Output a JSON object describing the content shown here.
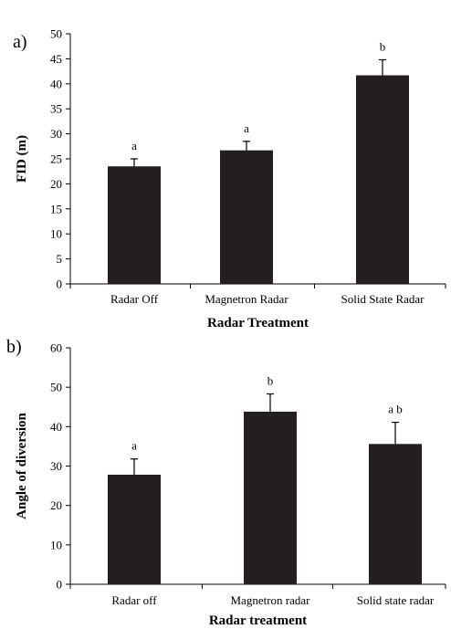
{
  "chart_data": [
    {
      "panel": "a)",
      "type": "bar",
      "title": "",
      "xlabel": "Radar Treatment",
      "ylabel": "FID (m)",
      "ylim": [
        0,
        50
      ],
      "yticks": [
        "0",
        "5",
        "10",
        "15",
        "20",
        "25",
        "30",
        "35",
        "40",
        "45",
        "50"
      ],
      "categories": [
        "Radar Off",
        "Magnetron Radar",
        "Solid State Radar"
      ],
      "values": [
        23.5,
        26.7,
        41.7
      ],
      "error_upper": [
        1.5,
        1.8,
        3.1
      ],
      "significance": [
        "a",
        "a",
        "b"
      ],
      "bar_color": "#231f20",
      "grid": false
    },
    {
      "panel": "b)",
      "type": "bar",
      "title": "",
      "xlabel": "Radar treatment",
      "ylabel": "Angle of diversion",
      "ylim": [
        0,
        60
      ],
      "yticks": [
        "0",
        "10",
        "20",
        "30",
        "40",
        "50",
        "60"
      ],
      "categories": [
        "Radar off",
        "Magnetron radar",
        "Solid state radar"
      ],
      "values": [
        27.8,
        43.8,
        35.6
      ],
      "error_upper": [
        4.0,
        4.5,
        5.5
      ],
      "significance": [
        "a",
        "b",
        "a b"
      ],
      "bar_color": "#231f20",
      "grid": false
    }
  ]
}
